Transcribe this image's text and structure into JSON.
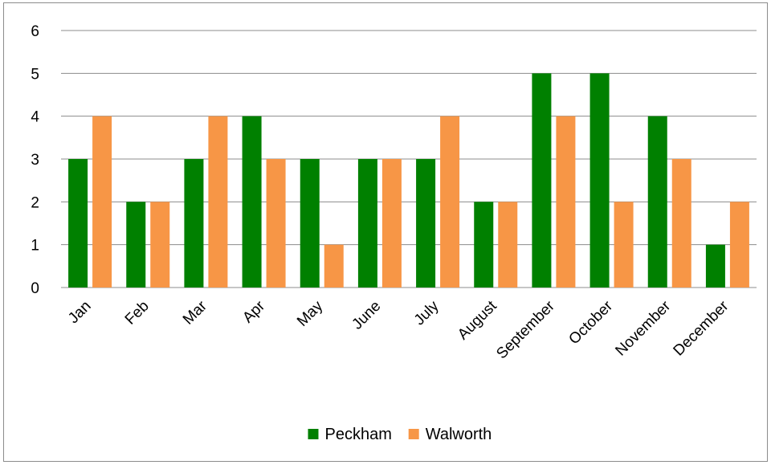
{
  "chart_data": {
    "type": "bar",
    "title": "",
    "xlabel": "",
    "ylabel": "",
    "categories": [
      "Jan",
      "Feb",
      "Mar",
      "Apr",
      "May",
      "June",
      "July",
      "August",
      "September",
      "October",
      "November",
      "December"
    ],
    "series": [
      {
        "name": "Peckham",
        "color": "#008000",
        "values": [
          3,
          2,
          3,
          4,
          3,
          3,
          3,
          2,
          5,
          5,
          4,
          1
        ]
      },
      {
        "name": "Walworth",
        "color": "#F79646",
        "values": [
          4,
          2,
          4,
          3,
          1,
          3,
          4,
          2,
          4,
          2,
          3,
          2
        ]
      }
    ],
    "ylim": [
      0,
      6
    ],
    "yticks": [
      0,
      1,
      2,
      3,
      4,
      5,
      6
    ],
    "grid": true,
    "legend_position": "bottom"
  }
}
